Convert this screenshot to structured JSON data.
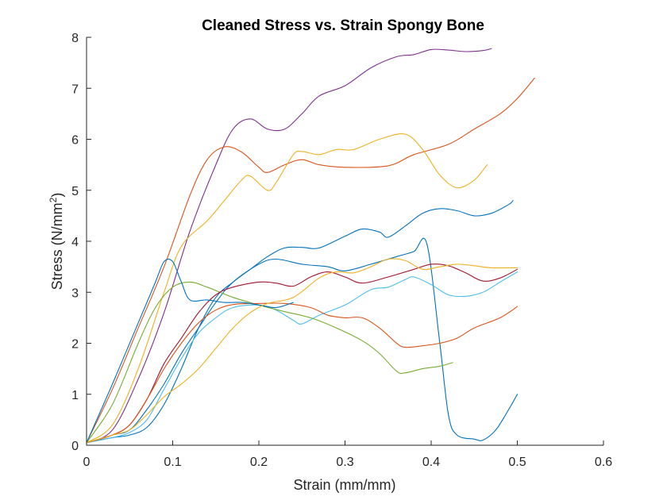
{
  "chart_data": {
    "type": "line",
    "title": "Cleaned Stress vs. Strain Spongy Bone",
    "xlabel": "Strain (mm/mm)",
    "ylabel_main": "Stress (N/mm",
    "ylabel_sup": "2",
    "ylabel_close": ")",
    "xlim": [
      0,
      0.6
    ],
    "ylim": [
      0,
      8
    ],
    "xticks": [
      "0",
      "0.1",
      "0.2",
      "0.3",
      "0.4",
      "0.5",
      "0.6"
    ],
    "yticks": [
      "0",
      "1",
      "2",
      "3",
      "4",
      "5",
      "6",
      "7",
      "8"
    ],
    "grid": false,
    "series": [
      {
        "color": "#7E2F8E",
        "points": [
          [
            0,
            0.05
          ],
          [
            0.03,
            0.3
          ],
          [
            0.06,
            1.3
          ],
          [
            0.09,
            2.6
          ],
          [
            0.12,
            4.2
          ],
          [
            0.15,
            5.5
          ],
          [
            0.17,
            6.2
          ],
          [
            0.19,
            6.4
          ],
          [
            0.21,
            6.2
          ],
          [
            0.23,
            6.2
          ],
          [
            0.25,
            6.5
          ],
          [
            0.27,
            6.85
          ],
          [
            0.3,
            7.05
          ],
          [
            0.33,
            7.4
          ],
          [
            0.36,
            7.62
          ],
          [
            0.38,
            7.66
          ],
          [
            0.4,
            7.76
          ],
          [
            0.42,
            7.75
          ],
          [
            0.44,
            7.72
          ],
          [
            0.46,
            7.74
          ],
          [
            0.47,
            7.78
          ]
        ]
      },
      {
        "color": "#D95319",
        "points": [
          [
            0,
            0.05
          ],
          [
            0.03,
            1.1
          ],
          [
            0.06,
            2.3
          ],
          [
            0.09,
            3.5
          ],
          [
            0.12,
            4.9
          ],
          [
            0.14,
            5.6
          ],
          [
            0.16,
            5.85
          ],
          [
            0.18,
            5.75
          ],
          [
            0.2,
            5.45
          ],
          [
            0.21,
            5.35
          ],
          [
            0.23,
            5.5
          ],
          [
            0.25,
            5.6
          ],
          [
            0.27,
            5.5
          ],
          [
            0.3,
            5.45
          ],
          [
            0.35,
            5.48
          ],
          [
            0.38,
            5.7
          ],
          [
            0.42,
            5.9
          ],
          [
            0.45,
            6.2
          ],
          [
            0.48,
            6.5
          ],
          [
            0.5,
            6.8
          ],
          [
            0.52,
            7.2
          ]
        ]
      },
      {
        "color": "#EDB120",
        "points": [
          [
            0,
            0.05
          ],
          [
            0.03,
            0.4
          ],
          [
            0.06,
            1.5
          ],
          [
            0.09,
            3.0
          ],
          [
            0.11,
            3.9
          ],
          [
            0.14,
            4.4
          ],
          [
            0.16,
            4.8
          ],
          [
            0.18,
            5.2
          ],
          [
            0.19,
            5.28
          ],
          [
            0.21,
            5.0
          ],
          [
            0.22,
            5.15
          ],
          [
            0.24,
            5.7
          ],
          [
            0.25,
            5.76
          ],
          [
            0.27,
            5.7
          ],
          [
            0.29,
            5.8
          ],
          [
            0.31,
            5.8
          ],
          [
            0.34,
            6.0
          ],
          [
            0.37,
            6.1
          ],
          [
            0.39,
            5.8
          ],
          [
            0.41,
            5.3
          ],
          [
            0.43,
            5.05
          ],
          [
            0.45,
            5.2
          ],
          [
            0.465,
            5.5
          ]
        ]
      },
      {
        "color": "#0072BD",
        "points": [
          [
            0,
            0.05
          ],
          [
            0.03,
            0.15
          ],
          [
            0.05,
            0.2
          ],
          [
            0.07,
            0.35
          ],
          [
            0.09,
            0.8
          ],
          [
            0.11,
            1.5
          ],
          [
            0.13,
            2.3
          ],
          [
            0.15,
            2.9
          ],
          [
            0.17,
            3.2
          ],
          [
            0.19,
            3.45
          ],
          [
            0.21,
            3.7
          ],
          [
            0.23,
            3.87
          ],
          [
            0.25,
            3.88
          ],
          [
            0.27,
            3.87
          ],
          [
            0.3,
            4.1
          ],
          [
            0.32,
            4.24
          ],
          [
            0.34,
            4.18
          ],
          [
            0.35,
            4.08
          ],
          [
            0.37,
            4.3
          ],
          [
            0.39,
            4.55
          ],
          [
            0.41,
            4.64
          ],
          [
            0.43,
            4.6
          ],
          [
            0.45,
            4.5
          ],
          [
            0.47,
            4.55
          ],
          [
            0.49,
            4.72
          ],
          [
            0.495,
            4.8
          ]
        ]
      },
      {
        "color": "#0072BD",
        "points": [
          [
            0,
            0.05
          ],
          [
            0.03,
            0.2
          ],
          [
            0.05,
            0.3
          ],
          [
            0.07,
            0.7
          ],
          [
            0.09,
            1.2
          ],
          [
            0.11,
            1.8
          ],
          [
            0.13,
            2.3
          ],
          [
            0.15,
            2.8
          ],
          [
            0.17,
            3.2
          ],
          [
            0.2,
            3.55
          ],
          [
            0.22,
            3.65
          ],
          [
            0.25,
            3.55
          ],
          [
            0.28,
            3.5
          ],
          [
            0.3,
            3.42
          ],
          [
            0.33,
            3.55
          ],
          [
            0.36,
            3.7
          ],
          [
            0.38,
            3.8
          ],
          [
            0.395,
            3.95
          ],
          [
            0.41,
            2.0
          ],
          [
            0.42,
            0.6
          ],
          [
            0.43,
            0.2
          ],
          [
            0.45,
            0.12
          ],
          [
            0.46,
            0.1
          ],
          [
            0.475,
            0.3
          ],
          [
            0.49,
            0.7
          ],
          [
            0.5,
            1.0
          ]
        ]
      },
      {
        "color": "#4DBEEE",
        "points": [
          [
            0,
            0.05
          ],
          [
            0.03,
            0.15
          ],
          [
            0.05,
            0.25
          ],
          [
            0.07,
            0.5
          ],
          [
            0.09,
            1.1
          ],
          [
            0.11,
            1.7
          ],
          [
            0.13,
            2.2
          ],
          [
            0.15,
            2.5
          ],
          [
            0.17,
            2.7
          ],
          [
            0.2,
            2.75
          ],
          [
            0.22,
            2.65
          ],
          [
            0.24,
            2.45
          ],
          [
            0.25,
            2.38
          ],
          [
            0.27,
            2.55
          ],
          [
            0.3,
            2.75
          ],
          [
            0.33,
            3.05
          ],
          [
            0.35,
            3.1
          ],
          [
            0.37,
            3.25
          ],
          [
            0.38,
            3.3
          ],
          [
            0.4,
            3.15
          ],
          [
            0.42,
            2.95
          ],
          [
            0.44,
            2.92
          ],
          [
            0.46,
            3.0
          ],
          [
            0.48,
            3.2
          ],
          [
            0.5,
            3.4
          ]
        ]
      },
      {
        "color": "#77AC30",
        "points": [
          [
            0,
            0.05
          ],
          [
            0.03,
            0.8
          ],
          [
            0.06,
            2.0
          ],
          [
            0.08,
            2.7
          ],
          [
            0.1,
            3.1
          ],
          [
            0.12,
            3.2
          ],
          [
            0.14,
            3.1
          ],
          [
            0.17,
            2.9
          ],
          [
            0.2,
            2.75
          ],
          [
            0.23,
            2.62
          ],
          [
            0.26,
            2.5
          ],
          [
            0.29,
            2.3
          ],
          [
            0.32,
            2.05
          ],
          [
            0.34,
            1.8
          ],
          [
            0.36,
            1.45
          ],
          [
            0.37,
            1.42
          ],
          [
            0.39,
            1.5
          ],
          [
            0.41,
            1.55
          ],
          [
            0.425,
            1.62
          ]
        ]
      },
      {
        "color": "#A2142F",
        "points": [
          [
            0,
            0.05
          ],
          [
            0.03,
            0.2
          ],
          [
            0.05,
            0.4
          ],
          [
            0.07,
            0.9
          ],
          [
            0.09,
            1.6
          ],
          [
            0.11,
            2.1
          ],
          [
            0.13,
            2.6
          ],
          [
            0.15,
            2.95
          ],
          [
            0.17,
            3.1
          ],
          [
            0.2,
            3.2
          ],
          [
            0.22,
            3.18
          ],
          [
            0.24,
            3.12
          ],
          [
            0.26,
            3.3
          ],
          [
            0.28,
            3.4
          ],
          [
            0.3,
            3.3
          ],
          [
            0.32,
            3.18
          ],
          [
            0.35,
            3.3
          ],
          [
            0.38,
            3.45
          ],
          [
            0.4,
            3.55
          ],
          [
            0.42,
            3.52
          ],
          [
            0.44,
            3.38
          ],
          [
            0.46,
            3.22
          ],
          [
            0.48,
            3.28
          ],
          [
            0.5,
            3.45
          ]
        ]
      },
      {
        "color": "#D95319",
        "points": [
          [
            0,
            0.05
          ],
          [
            0.03,
            0.2
          ],
          [
            0.05,
            0.4
          ],
          [
            0.07,
            0.9
          ],
          [
            0.09,
            1.5
          ],
          [
            0.11,
            2.0
          ],
          [
            0.13,
            2.4
          ],
          [
            0.15,
            2.65
          ],
          [
            0.17,
            2.76
          ],
          [
            0.2,
            2.78
          ],
          [
            0.23,
            2.78
          ],
          [
            0.26,
            2.7
          ],
          [
            0.28,
            2.55
          ],
          [
            0.3,
            2.5
          ],
          [
            0.32,
            2.5
          ],
          [
            0.34,
            2.3
          ],
          [
            0.36,
            2.0
          ],
          [
            0.37,
            1.92
          ],
          [
            0.39,
            1.95
          ],
          [
            0.41,
            2.0
          ],
          [
            0.43,
            2.1
          ],
          [
            0.45,
            2.3
          ],
          [
            0.48,
            2.5
          ],
          [
            0.5,
            2.72
          ]
        ]
      },
      {
        "color": "#0072BD",
        "points": [
          [
            0,
            0.05
          ],
          [
            0.03,
            1.2
          ],
          [
            0.06,
            2.4
          ],
          [
            0.08,
            3.2
          ],
          [
            0.09,
            3.6
          ],
          [
            0.1,
            3.6
          ],
          [
            0.11,
            3.2
          ],
          [
            0.12,
            2.85
          ],
          [
            0.14,
            2.85
          ],
          [
            0.16,
            2.8
          ],
          [
            0.18,
            2.8
          ],
          [
            0.2,
            2.75
          ],
          [
            0.22,
            2.7
          ],
          [
            0.24,
            2.8
          ]
        ]
      },
      {
        "color": "#EDB120",
        "points": [
          [
            0,
            0.05
          ],
          [
            0.03,
            0.2
          ],
          [
            0.05,
            0.3
          ],
          [
            0.07,
            0.6
          ],
          [
            0.09,
            0.95
          ],
          [
            0.11,
            1.2
          ],
          [
            0.13,
            1.5
          ],
          [
            0.15,
            1.9
          ],
          [
            0.17,
            2.3
          ],
          [
            0.19,
            2.6
          ],
          [
            0.21,
            2.78
          ],
          [
            0.24,
            2.9
          ],
          [
            0.27,
            3.28
          ],
          [
            0.29,
            3.4
          ],
          [
            0.31,
            3.38
          ],
          [
            0.33,
            3.5
          ],
          [
            0.35,
            3.65
          ],
          [
            0.37,
            3.62
          ],
          [
            0.39,
            3.45
          ],
          [
            0.41,
            3.5
          ],
          [
            0.43,
            3.55
          ],
          [
            0.45,
            3.52
          ],
          [
            0.47,
            3.48
          ],
          [
            0.5,
            3.48
          ]
        ]
      }
    ]
  }
}
